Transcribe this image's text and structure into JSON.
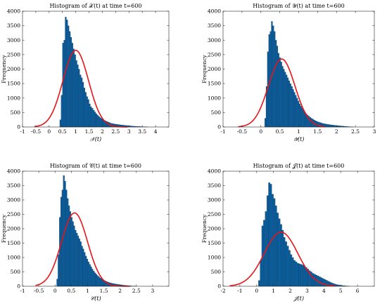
{
  "chart_data": [
    {
      "type": "bar",
      "title": "Histogram of 𝒳(t) at time t=600",
      "xlabel": "𝒳(t)",
      "ylabel": "Frequency",
      "xlim": [
        -1,
        4.5
      ],
      "ylim": [
        0,
        4000
      ],
      "xticks": [
        "-1",
        "-0.5",
        "0",
        "0.5",
        "1",
        "1.5",
        "2",
        "2.5",
        "3",
        "3.5",
        "4"
      ],
      "yticks": [
        "0",
        "500",
        "1000",
        "1500",
        "2000",
        "2500",
        "3000",
        "3500",
        "4000"
      ],
      "bar_color": "#0b5f9e",
      "fit_color": "#e8141a",
      "bins": {
        "start": 0.4,
        "width": 0.05,
        "values": [
          250,
          1100,
          2900,
          3000,
          3800,
          3700,
          3500,
          3300,
          3100,
          2900,
          2700,
          2500,
          2300,
          2150,
          2000,
          1800,
          1700,
          1550,
          1350,
          1200,
          1050,
          950,
          800,
          700,
          650,
          580,
          520,
          460,
          410,
          360,
          320,
          290,
          260,
          230,
          210,
          190,
          170,
          150,
          130,
          120,
          110,
          100,
          95,
          90,
          80,
          75,
          70,
          65,
          60,
          55,
          50,
          45,
          40,
          35,
          30,
          28,
          25,
          22,
          20,
          18,
          15,
          12,
          10,
          8,
          6,
          5
        ]
      },
      "fit": {
        "type": "normal",
        "mean": 1.0,
        "peak": 2650,
        "sd": 0.48,
        "range": [
          -0.55,
          2.95
        ]
      }
    },
    {
      "type": "bar",
      "title": "Histogram of 𝒴(t) at time t=600",
      "xlabel": "𝒴(t)",
      "ylabel": "Frequency",
      "xlim": [
        -1,
        3
      ],
      "ylim": [
        0,
        4000
      ],
      "xticks": [
        "-1",
        "-0.5",
        "0",
        "0.5",
        "1",
        "1.5",
        "2",
        "2.5",
        "3"
      ],
      "yticks": [
        "0",
        "500",
        "1000",
        "1500",
        "2000",
        "2500",
        "3000",
        "3500",
        "4000"
      ],
      "bar_color": "#0b5f9e",
      "fit_color": "#e8141a",
      "bins": {
        "start": 0.1,
        "width": 0.035,
        "values": [
          300,
          1400,
          2600,
          3200,
          3300,
          3650,
          3500,
          3300,
          3000,
          2800,
          2550,
          2400,
          2250,
          2100,
          2000,
          1900,
          1800,
          1700,
          1600,
          1500,
          1400,
          1300,
          1200,
          1100,
          1000,
          900,
          800,
          720,
          650,
          580,
          520,
          460,
          410,
          370,
          330,
          300,
          270,
          240,
          215,
          195,
          175,
          160,
          145,
          130,
          120,
          110,
          100,
          92,
          85,
          78,
          72,
          66,
          60,
          55,
          50,
          45,
          40,
          36,
          32,
          28,
          24,
          20,
          16,
          12,
          8,
          6,
          4
        ]
      },
      "fit": {
        "type": "normal",
        "mean": 0.55,
        "peak": 2350,
        "sd": 0.35,
        "range": [
          -0.6,
          1.7
        ]
      }
    },
    {
      "type": "bar",
      "title": "Histogram of 𝒞(t) at time t=600",
      "xlabel": "𝒞(t)",
      "ylabel": "Frequency",
      "xlim": [
        -1,
        3.5
      ],
      "ylim": [
        0,
        4000
      ],
      "xticks": [
        "-1",
        "-0.5",
        "0",
        "0.5",
        "1",
        "1.5",
        "2",
        "2.5",
        "3"
      ],
      "yticks": [
        "0",
        "500",
        "1000",
        "1500",
        "2000",
        "2500",
        "3000",
        "3500",
        "4000"
      ],
      "bar_color": "#0b5f9e",
      "fit_color": "#e8141a",
      "bins": {
        "start": 0.05,
        "width": 0.04,
        "values": [
          250,
          1100,
          2400,
          3100,
          3350,
          3850,
          3650,
          3350,
          3050,
          2800,
          2600,
          2400,
          2250,
          2100,
          1950,
          1850,
          1750,
          1650,
          1550,
          1400,
          1300,
          1180,
          1050,
          950,
          850,
          760,
          680,
          600,
          530,
          470,
          420,
          370,
          330,
          290,
          260,
          230,
          205,
          185,
          165,
          145,
          130,
          115,
          105,
          95,
          85,
          78,
          70,
          63,
          56,
          50,
          44,
          38,
          33,
          28,
          24,
          20,
          16,
          12,
          9,
          6,
          4
        ]
      },
      "fit": {
        "type": "normal",
        "mean": 0.6,
        "peak": 2550,
        "sd": 0.4,
        "range": [
          -0.6,
          2.3
        ]
      }
    },
    {
      "type": "bar",
      "title": "Histogram of 𝒥(t) at time t=600",
      "xlabel": "𝒥(t)",
      "ylabel": "Frequency",
      "xlim": [
        -2,
        7
      ],
      "ylim": [
        0,
        4000
      ],
      "xticks": [
        "-2",
        "-1",
        "0",
        "1",
        "2",
        "3",
        "4",
        "5",
        "6"
      ],
      "yticks": [
        "0",
        "500",
        "1000",
        "1500",
        "2000",
        "2500",
        "3000",
        "3500",
        "4000"
      ],
      "bar_color": "#0b5f9e",
      "fit_color": "#e8141a",
      "bins": {
        "start": 0.1,
        "width": 0.1,
        "values": [
          200,
          900,
          2100,
          2300,
          2600,
          3150,
          3600,
          3550,
          3200,
          3050,
          2800,
          2550,
          2350,
          2150,
          1950,
          1700,
          1550,
          1400,
          1250,
          1100,
          1000,
          900,
          850,
          800,
          780,
          760,
          740,
          700,
          650,
          600,
          540,
          500,
          450,
          420,
          390,
          360,
          330,
          300,
          270,
          240,
          210,
          180,
          150,
          125,
          100,
          80,
          62,
          50,
          38,
          30,
          22,
          16,
          10,
          6
        ]
      },
      "fit": {
        "type": "normal",
        "mean": 1.45,
        "peak": 1880,
        "sd": 1.0,
        "range": [
          -1.6,
          4.7
        ]
      }
    }
  ]
}
